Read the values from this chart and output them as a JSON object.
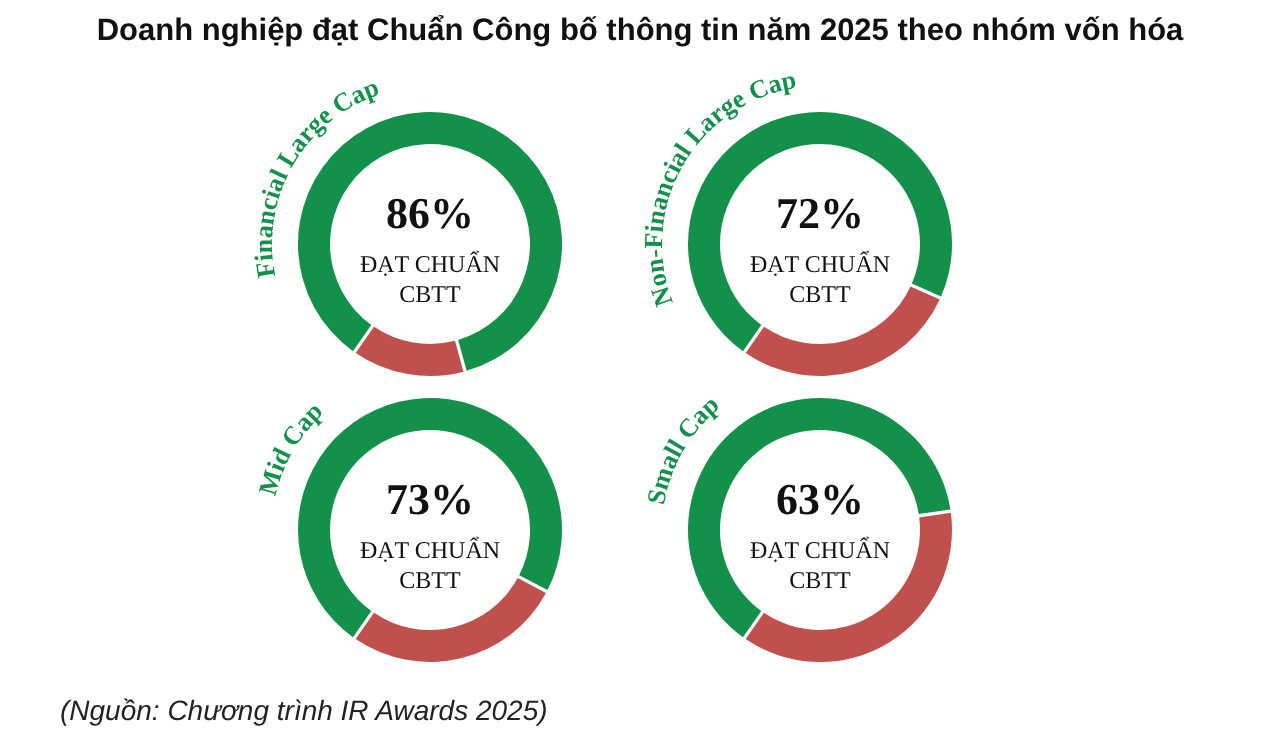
{
  "chart_data": [
    {
      "type": "other",
      "title": "Doanh nghiệp đạt Chuẩn Công bố thông tin năm 2025 theo nhóm vốn hóa",
      "annotations": [
        "(Nguồn: Chương trình IR Awards 2025)"
      ]
    },
    {
      "type": "donut",
      "title": "Financial Large Cap",
      "categories": [
        "ĐẠT CHUẨN CBTT",
        null
      ],
      "values": [
        86,
        14
      ],
      "colors": [
        "#13904a",
        "#c0504d"
      ],
      "value_labels": [
        "86%",
        null
      ]
    },
    {
      "type": "donut",
      "title": "Non-Financial Large Cap",
      "categories": [
        "ĐẠT CHUẨN CBTT",
        null
      ],
      "values": [
        72,
        28
      ],
      "colors": [
        "#13904a",
        "#c0504d"
      ],
      "value_labels": [
        "72%",
        null
      ]
    },
    {
      "type": "donut",
      "title": "Mid Cap",
      "categories": [
        "ĐẠT CHUẨN CBTT",
        null
      ],
      "values": [
        73,
        27
      ],
      "colors": [
        "#13904a",
        "#c0504d"
      ],
      "value_labels": [
        "73%",
        null
      ]
    },
    {
      "type": "donut",
      "title": "Small Cap",
      "categories": [
        "ĐẠT CHUẨN CBTT",
        null
      ],
      "values": [
        63,
        37
      ],
      "colors": [
        "#13904a",
        "#c0504d"
      ],
      "value_labels": [
        "63%",
        null
      ]
    }
  ]
}
